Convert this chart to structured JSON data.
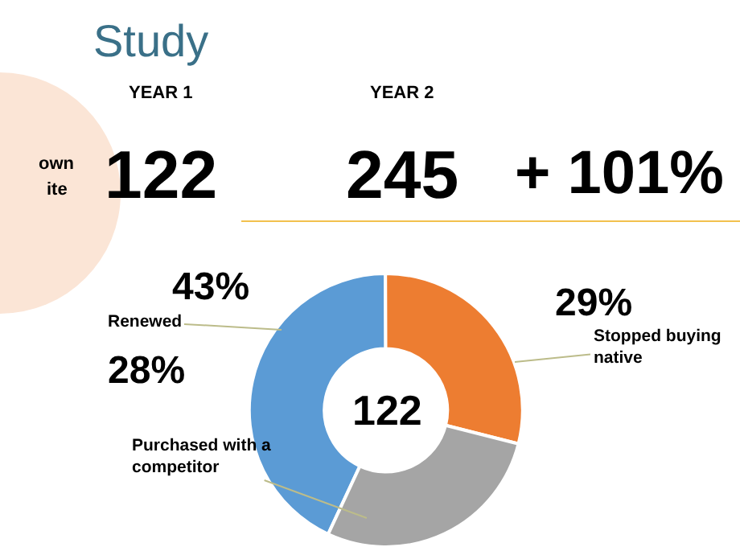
{
  "chart_data": {
    "type": "donut",
    "title": "Study",
    "categories": [
      "Renewed",
      "Stopped buying native",
      "Purchased with a competitor"
    ],
    "values": [
      43,
      29,
      28
    ],
    "colors": [
      "#5b9bd5",
      "#ed7d31",
      "#a5a5a5"
    ],
    "value_labels": [
      "43%",
      "29%",
      "28%"
    ],
    "annotations": [
      "YEAR 1",
      "122",
      "YEAR 2",
      "245",
      "+ 101%",
      "own",
      "ite",
      "122"
    ]
  }
}
